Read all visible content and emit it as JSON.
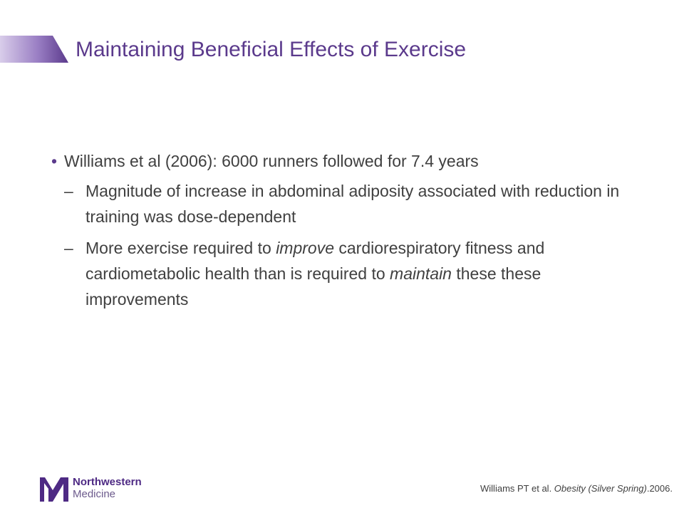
{
  "title": "Maintaining Beneficial Effects of Exercise",
  "bullets": [
    {
      "text": "Williams et al (2006): 6000 runners followed for 7.4 years",
      "subs": [
        {
          "part1": "Magnitude of increase in abdominal adiposity associated with reduction in training was dose-dependent"
        },
        {
          "part1": "More exercise required to ",
          "em1": "improve",
          "part2": " cardiorespiratory fitness and cardiometabolic health than is required to ",
          "em2": "maintain",
          "part3": " these these improvements"
        }
      ]
    }
  ],
  "logo": {
    "line1": "Northwestern",
    "line2": "Medicine"
  },
  "citation": {
    "prefix": "Williams PT et al. ",
    "journal": "Obesity (Silver Spring)",
    "suffix": ".2006."
  },
  "colors": {
    "title": "#5b3a8c",
    "accent_bar": "#6d4ba3",
    "logo": "#4e2a84"
  }
}
